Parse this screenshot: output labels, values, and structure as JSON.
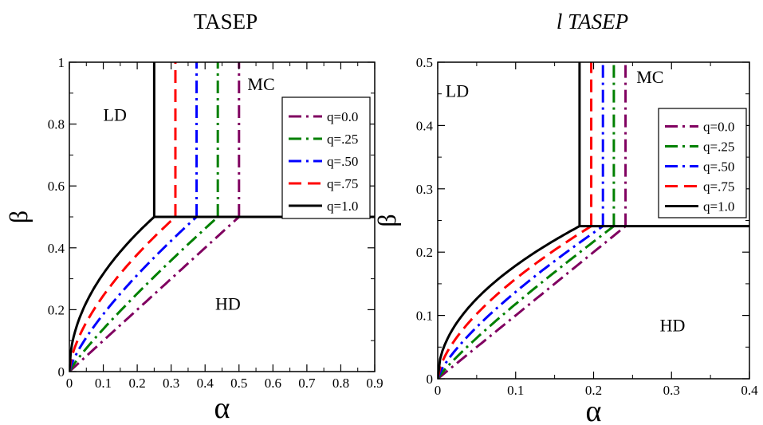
{
  "chart_data": [
    {
      "type": "line",
      "title": "TASEP",
      "title_italic": false,
      "xlabel": "α",
      "ylabel": "β",
      "xlim": [
        0,
        0.9
      ],
      "ylim": [
        0,
        1
      ],
      "xticks": [
        "0",
        "0.1",
        "0.2",
        "0.3",
        "0.4",
        "0.5",
        "0.6",
        "0.7",
        "0.8",
        "0.9"
      ],
      "yticks": [
        "0",
        "0.2",
        "0.4",
        "0.6",
        "0.8",
        "1"
      ],
      "regions": [
        {
          "label": "LD",
          "x": 0.1,
          "y": 0.81
        },
        {
          "label": "MC",
          "x": 0.525,
          "y": 0.91
        },
        {
          "label": "HD",
          "x": 0.43,
          "y": 0.2
        }
      ],
      "legend_position": "top-right",
      "series": [
        {
          "name": "q=0.0",
          "color": "#800060",
          "dash": "dashdot",
          "critical": 0.5
        },
        {
          "name": "q=.25",
          "color": "#008000",
          "dash": "dashdot",
          "critical": 0.4375
        },
        {
          "name": "q=.50",
          "color": "#0000ff",
          "dash": "dashdot",
          "critical": 0.375
        },
        {
          "name": "q=.75",
          "color": "#ff0000",
          "dash": "dash",
          "critical": 0.3125
        },
        {
          "name": "q=1.0",
          "color": "#000000",
          "dash": "solid",
          "critical": 0.25
        }
      ],
      "triple_point": [
        0.5,
        0.5
      ],
      "ld_hd_boundary_q": [
        0,
        0.25,
        0.5,
        0.75,
        1
      ]
    },
    {
      "type": "line",
      "title": "l TASEP",
      "title_italic": true,
      "xlabel": "α",
      "ylabel": "β",
      "xlim": [
        0,
        0.4
      ],
      "ylim": [
        0,
        0.5
      ],
      "xticks": [
        "0",
        "0.1",
        "0.2",
        "0.3",
        "0.4"
      ],
      "yticks": [
        "0",
        "0.1",
        "0.2",
        "0.3",
        "0.4",
        "0.5"
      ],
      "regions": [
        {
          "label": "LD",
          "x": 0.01,
          "y": 0.445
        },
        {
          "label": "MC",
          "x": 0.255,
          "y": 0.467
        },
        {
          "label": "HD",
          "x": 0.285,
          "y": 0.075
        }
      ],
      "legend_position": "top-right",
      "series": [
        {
          "name": "q=0.0",
          "color": "#800060",
          "dash": "dashdot",
          "critical": 0.241
        },
        {
          "name": "q=.25",
          "color": "#008000",
          "dash": "dashdot",
          "critical": 0.226
        },
        {
          "name": "q=.50",
          "color": "#0000ff",
          "dash": "dashdot",
          "critical": 0.212
        },
        {
          "name": "q=.75",
          "color": "#ff0000",
          "dash": "dash",
          "critical": 0.197
        },
        {
          "name": "q=1.0",
          "color": "#000000",
          "dash": "solid",
          "critical": 0.182
        }
      ],
      "triple_point": [
        0.241,
        0.241
      ],
      "ld_hd_boundary_q": [
        0,
        0.25,
        0.5,
        0.75,
        1
      ]
    }
  ]
}
